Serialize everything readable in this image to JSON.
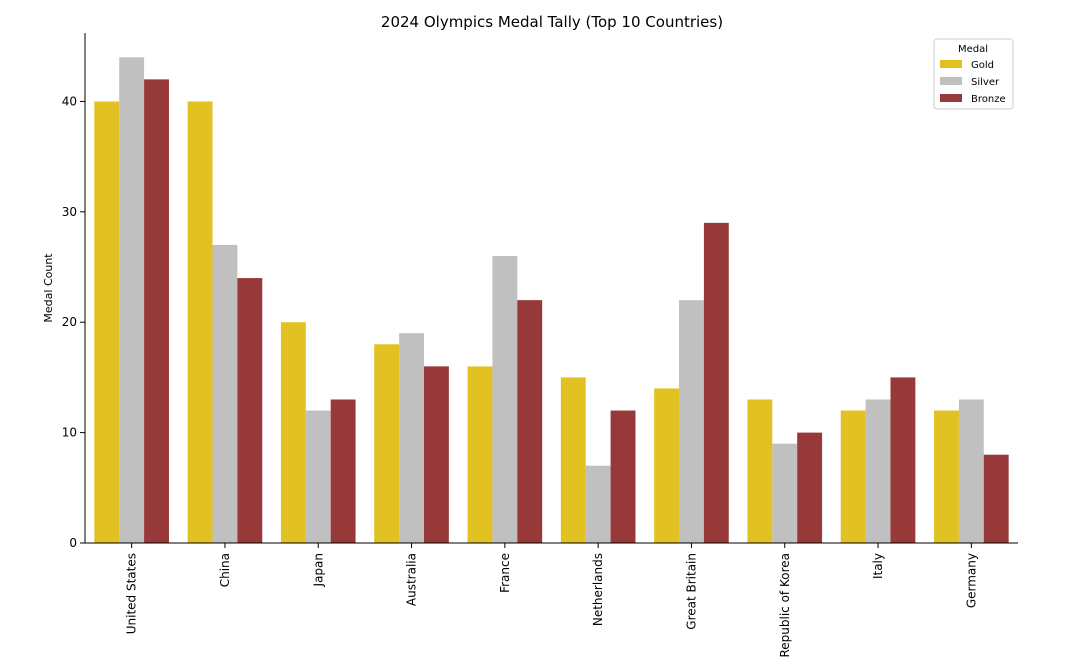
{
  "chart_data": {
    "type": "bar",
    "title": "2024 Olympics Medal Tally (Top 10 Countries)",
    "xlabel": "",
    "ylabel": "Medal Count",
    "ylim": [
      0,
      46.2
    ],
    "yticks": [
      0,
      10,
      20,
      30,
      40
    ],
    "categories": [
      "United States",
      "China",
      "Japan",
      "Australia",
      "France",
      "Netherlands",
      "Great Britain",
      "Republic of Korea",
      "Italy",
      "Germany"
    ],
    "series": [
      {
        "name": "Gold",
        "color": "#E2C222",
        "values": [
          40,
          40,
          20,
          18,
          16,
          15,
          14,
          13,
          12,
          12
        ]
      },
      {
        "name": "Silver",
        "color": "#C0C0C0",
        "values": [
          44,
          27,
          12,
          19,
          26,
          7,
          22,
          9,
          13,
          13
        ]
      },
      {
        "name": "Bronze",
        "color": "#983939",
        "values": [
          42,
          24,
          13,
          16,
          22,
          12,
          29,
          10,
          15,
          8
        ]
      }
    ],
    "legend": {
      "title": "Medal",
      "placement": "top-right"
    },
    "grid": false
  }
}
